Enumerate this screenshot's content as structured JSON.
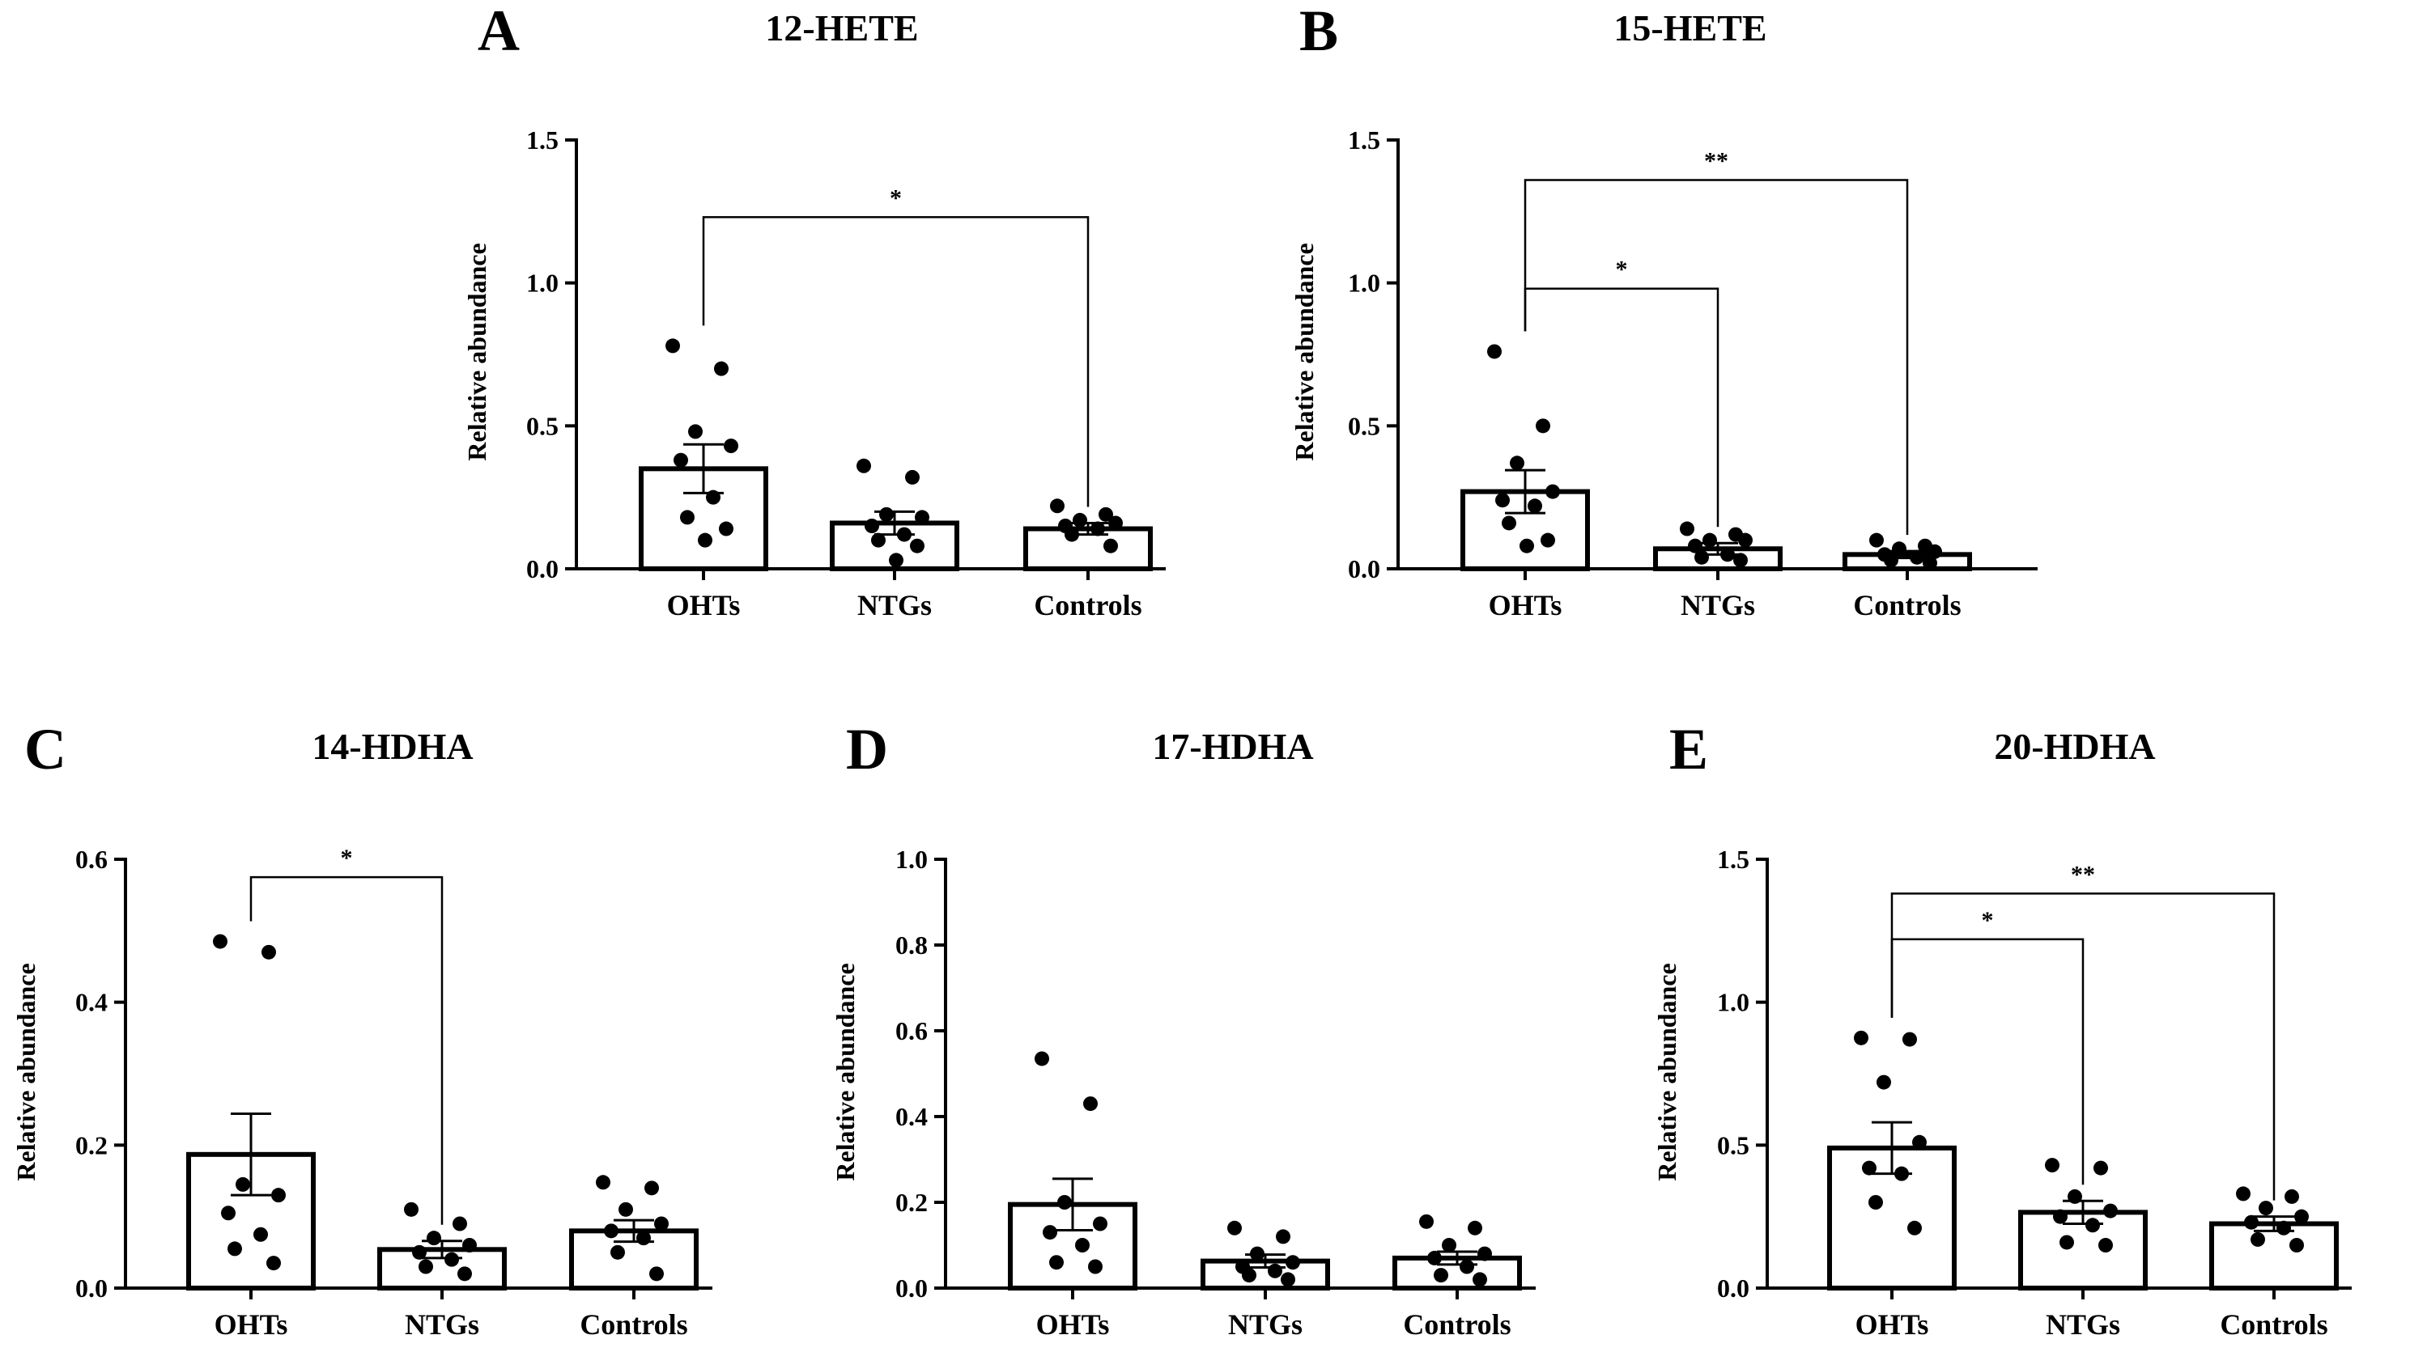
{
  "figure": {
    "ylabel": "Relative abundance"
  },
  "chart_data": [
    {
      "type": "bar",
      "panel": "A",
      "title": "12-HETE",
      "categories": [
        "OHTs",
        "NTGs",
        "Controls"
      ],
      "values": [
        0.35,
        0.16,
        0.14
      ],
      "sem": [
        0.085,
        0.04,
        0.02
      ],
      "points": [
        [
          0.78,
          0.7,
          0.48,
          0.43,
          0.38,
          0.25,
          0.18,
          0.14,
          0.1
        ],
        [
          0.36,
          0.32,
          0.19,
          0.18,
          0.15,
          0.12,
          0.1,
          0.08,
          0.03
        ],
        [
          0.22,
          0.19,
          0.17,
          0.16,
          0.15,
          0.14,
          0.12,
          0.08
        ]
      ],
      "xlabel": "",
      "ylabel": "Relative abundance",
      "ylim": [
        0,
        1.5
      ],
      "yticks": [
        "0.0",
        "0.5",
        "1.0",
        "1.5"
      ],
      "ytick_values": [
        0,
        0.5,
        1.0,
        1.5
      ],
      "significance": [
        {
          "from": 0,
          "to": 2,
          "label": "*",
          "y": 1.23
        }
      ]
    },
    {
      "type": "bar",
      "panel": "B",
      "title": "15-HETE",
      "categories": [
        "OHTs",
        "NTGs",
        "Controls"
      ],
      "values": [
        0.27,
        0.07,
        0.05
      ],
      "sem": [
        0.075,
        0.02,
        0.012
      ],
      "points": [
        [
          0.76,
          0.5,
          0.37,
          0.27,
          0.24,
          0.22,
          0.16,
          0.1,
          0.08
        ],
        [
          0.14,
          0.12,
          0.1,
          0.1,
          0.08,
          0.05,
          0.04,
          0.03
        ],
        [
          0.1,
          0.08,
          0.07,
          0.06,
          0.05,
          0.04,
          0.03,
          0.02
        ]
      ],
      "xlabel": "",
      "ylabel": "Relative abundance",
      "ylim": [
        0,
        1.5
      ],
      "yticks": [
        "0.0",
        "0.5",
        "1.0",
        "1.5"
      ],
      "ytick_values": [
        0,
        0.5,
        1.0,
        1.5
      ],
      "significance": [
        {
          "from": 0,
          "to": 1,
          "label": "*",
          "y": 0.98
        },
        {
          "from": 0,
          "to": 2,
          "label": "**",
          "y": 1.36
        }
      ]
    },
    {
      "type": "bar",
      "panel": "C",
      "title": "14-HDHA",
      "categories": [
        "OHTs",
        "NTGs",
        "Controls"
      ],
      "values": [
        0.187,
        0.054,
        0.08
      ],
      "sem": [
        0.057,
        0.012,
        0.015
      ],
      "points": [
        [
          0.485,
          0.47,
          0.145,
          0.13,
          0.105,
          0.075,
          0.055,
          0.035
        ],
        [
          0.11,
          0.09,
          0.07,
          0.06,
          0.05,
          0.04,
          0.03,
          0.02
        ],
        [
          0.148,
          0.14,
          0.11,
          0.09,
          0.08,
          0.07,
          0.05,
          0.02
        ]
      ],
      "xlabel": "",
      "ylabel": "Relative abundance",
      "ylim": [
        0,
        0.6
      ],
      "yticks": [
        "0.0",
        "0.2",
        "0.4",
        "0.6"
      ],
      "ytick_values": [
        0,
        0.2,
        0.4,
        0.6
      ],
      "significance": [
        {
          "from": 0,
          "to": 1,
          "label": "*",
          "y": 0.575
        }
      ]
    },
    {
      "type": "bar",
      "panel": "D",
      "title": "17-HDHA",
      "categories": [
        "OHTs",
        "NTGs",
        "Controls"
      ],
      "values": [
        0.195,
        0.063,
        0.07
      ],
      "sem": [
        0.06,
        0.015,
        0.015
      ],
      "points": [
        [
          0.535,
          0.43,
          0.2,
          0.15,
          0.13,
          0.1,
          0.06,
          0.05
        ],
        [
          0.14,
          0.12,
          0.08,
          0.06,
          0.05,
          0.04,
          0.03,
          0.02
        ],
        [
          0.155,
          0.14,
          0.1,
          0.08,
          0.07,
          0.05,
          0.03,
          0.02
        ]
      ],
      "xlabel": "",
      "ylabel": "Relative abundance",
      "ylim": [
        0,
        1.0
      ],
      "yticks": [
        "0.0",
        "0.2",
        "0.4",
        "0.6",
        "0.8",
        "1.0"
      ],
      "ytick_values": [
        0,
        0.2,
        0.4,
        0.6,
        0.8,
        1.0
      ],
      "significance": []
    },
    {
      "type": "bar",
      "panel": "E",
      "title": "20-HDHA",
      "categories": [
        "OHTs",
        "NTGs",
        "Controls"
      ],
      "values": [
        0.49,
        0.265,
        0.225
      ],
      "sem": [
        0.09,
        0.04,
        0.025
      ],
      "points": [
        [
          0.875,
          0.87,
          0.72,
          0.51,
          0.42,
          0.4,
          0.3,
          0.21
        ],
        [
          0.43,
          0.42,
          0.32,
          0.27,
          0.25,
          0.22,
          0.16,
          0.15
        ],
        [
          0.33,
          0.32,
          0.28,
          0.25,
          0.23,
          0.21,
          0.17,
          0.15
        ]
      ],
      "xlabel": "",
      "ylabel": "Relative abundance",
      "ylim": [
        0,
        1.5
      ],
      "yticks": [
        "0.0",
        "0.5",
        "1.0",
        "1.5"
      ],
      "ytick_values": [
        0,
        0.5,
        1.0,
        1.5
      ],
      "significance": [
        {
          "from": 0,
          "to": 1,
          "label": "*",
          "y": 1.22
        },
        {
          "from": 0,
          "to": 2,
          "label": "**",
          "y": 1.38
        }
      ]
    }
  ]
}
